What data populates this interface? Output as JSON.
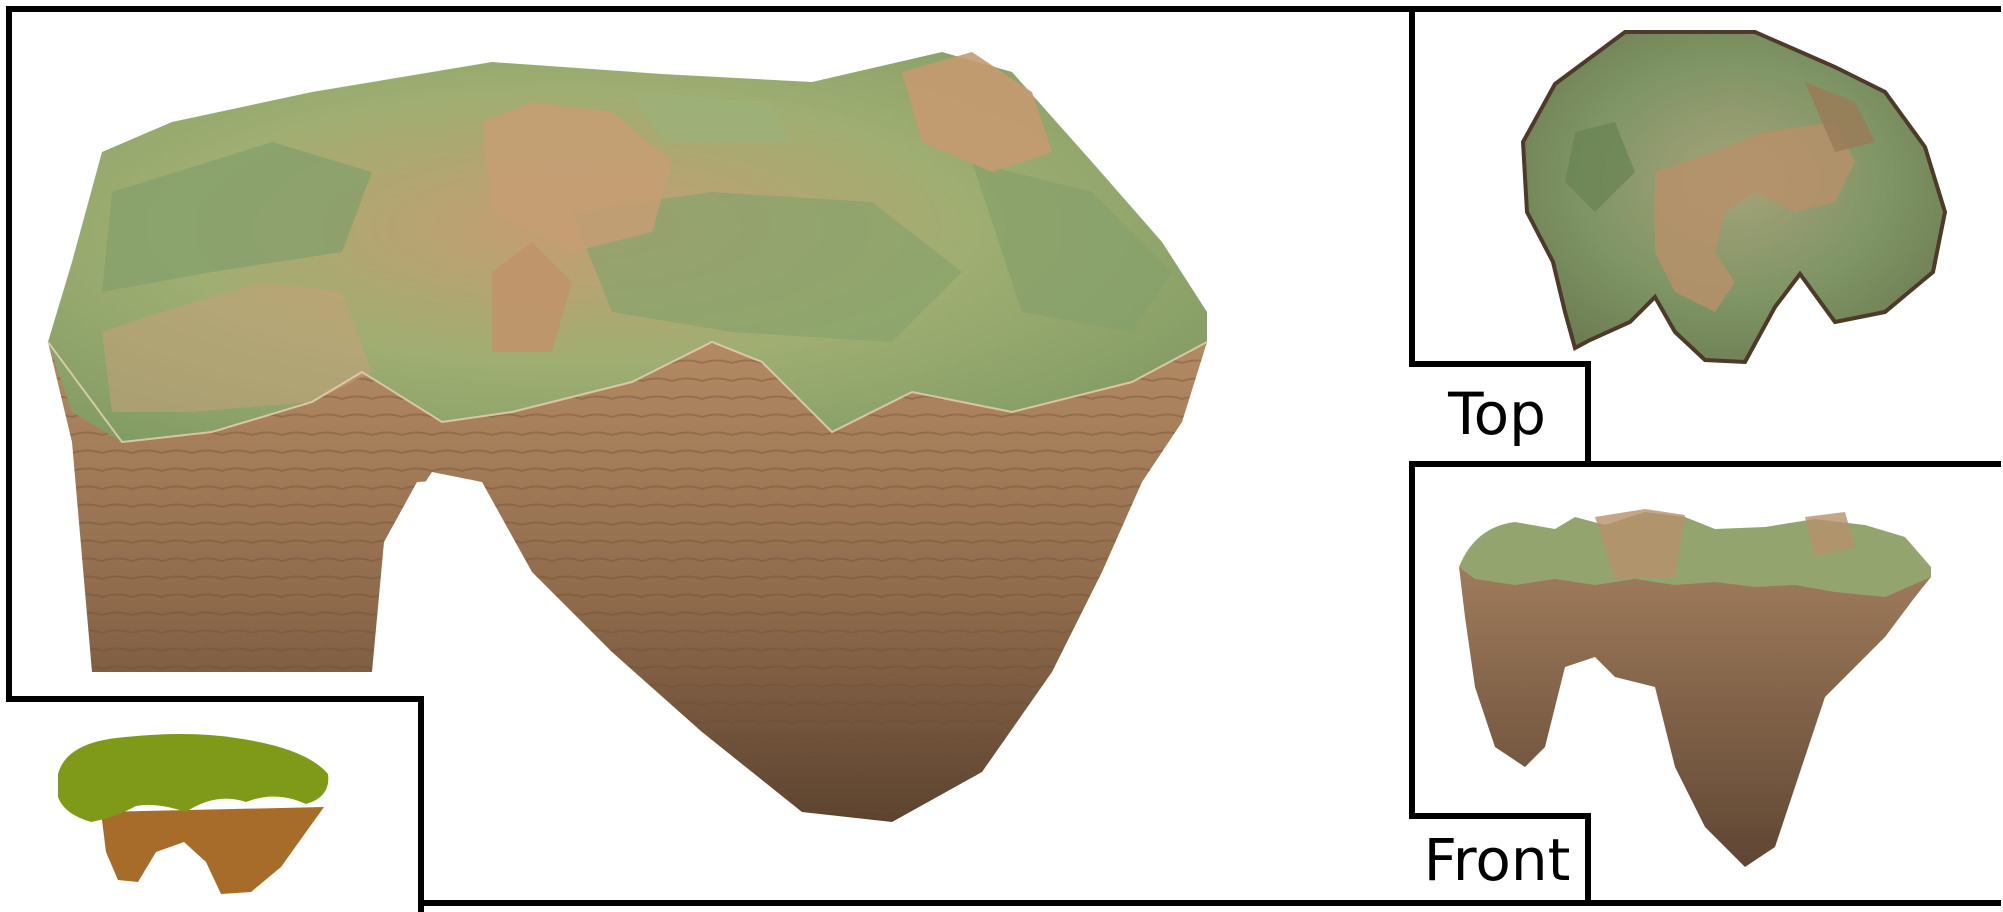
{
  "views": {
    "main": {
      "name": "perspective-view"
    },
    "top": {
      "label": "Top"
    },
    "front": {
      "label": "Front"
    }
  },
  "colors": {
    "border": "#000000",
    "background": "#ffffff",
    "grass": "#7e9a18",
    "dirt": "#a86c2a",
    "rock_light": "#d1a27a",
    "rock_mid": "#b8875e",
    "rock_dark": "#6e4e33",
    "grass_render": "#8fa56a"
  },
  "icons": {
    "sketch": "sketch-input-icon"
  }
}
